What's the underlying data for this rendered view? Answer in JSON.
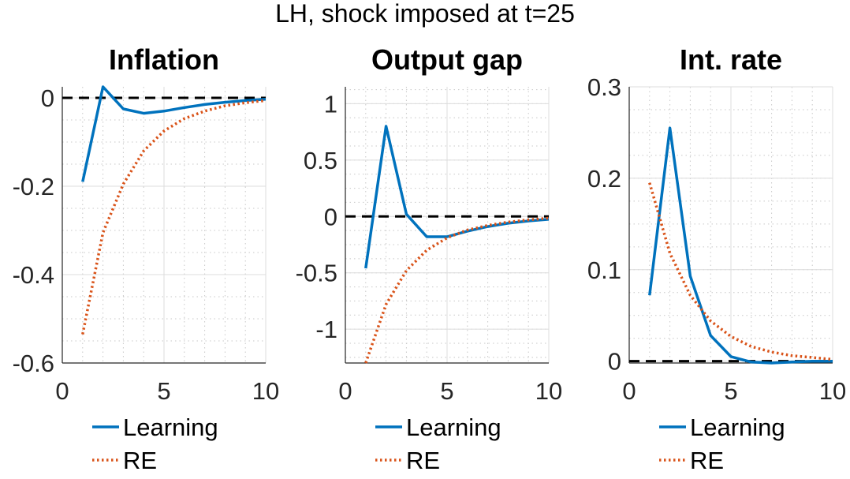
{
  "figure": {
    "suptitle": "LH, shock imposed at t=25"
  },
  "chart_data": [
    {
      "type": "line",
      "title": "Inflation",
      "xlabel": "",
      "ylabel": "",
      "xlim": [
        0,
        10
      ],
      "ylim": [
        -0.6,
        0.025
      ],
      "xticks": [
        0,
        5,
        10
      ],
      "xtick_labels": [
        "0",
        "5",
        "10"
      ],
      "yticks": [
        0,
        -0.2,
        -0.4,
        -0.6
      ],
      "ytick_labels": [
        "0",
        "-0.2",
        "-0.4",
        "-0.6"
      ],
      "grid": true,
      "minor_grid": true,
      "legend_position": "below",
      "x": [
        1,
        2,
        3,
        4,
        5,
        6,
        7,
        8,
        9,
        10
      ],
      "series": [
        {
          "name": "Learning",
          "style": "solid",
          "color": "#0072BD",
          "values": [
            -0.19,
            0.025,
            -0.025,
            -0.035,
            -0.03,
            -0.022,
            -0.015,
            -0.01,
            -0.006,
            -0.003
          ]
        },
        {
          "name": "RE",
          "style": "dotted",
          "color": "#D95319",
          "values": [
            -0.535,
            -0.305,
            -0.195,
            -0.12,
            -0.075,
            -0.047,
            -0.03,
            -0.018,
            -0.011,
            -0.006
          ]
        }
      ],
      "reference_line": {
        "y": 0,
        "style": "dashed",
        "color": "#000000"
      }
    },
    {
      "type": "line",
      "title": "Output gap",
      "xlabel": "",
      "ylabel": "",
      "xlim": [
        0,
        10
      ],
      "ylim": [
        -1.3,
        1.15
      ],
      "xticks": [
        0,
        5,
        10
      ],
      "xtick_labels": [
        "0",
        "5",
        "10"
      ],
      "yticks": [
        1,
        0.5,
        0,
        -0.5,
        -1
      ],
      "ytick_labels": [
        "1",
        "0.5",
        "0",
        "-0.5",
        "-1"
      ],
      "grid": true,
      "minor_grid": true,
      "legend_position": "below",
      "x": [
        1,
        2,
        3,
        4,
        5,
        6,
        7,
        8,
        9,
        10
      ],
      "series": [
        {
          "name": "Learning",
          "style": "solid",
          "color": "#0072BD",
          "values": [
            -0.46,
            0.8,
            0.02,
            -0.18,
            -0.18,
            -0.13,
            -0.09,
            -0.06,
            -0.04,
            -0.025
          ]
        },
        {
          "name": "RE",
          "style": "dotted",
          "color": "#D95319",
          "values": [
            -1.3,
            -0.78,
            -0.48,
            -0.3,
            -0.19,
            -0.12,
            -0.08,
            -0.05,
            -0.03,
            -0.015
          ]
        }
      ],
      "reference_line": {
        "y": 0,
        "style": "dashed",
        "color": "#000000"
      }
    },
    {
      "type": "line",
      "title": "Int. rate",
      "xlabel": "",
      "ylabel": "",
      "xlim": [
        0,
        10
      ],
      "ylim": [
        -0.002,
        0.3
      ],
      "xticks": [
        0,
        5,
        10
      ],
      "xtick_labels": [
        "0",
        "5",
        "10"
      ],
      "yticks": [
        0.3,
        0.2,
        0.1,
        0
      ],
      "ytick_labels": [
        "0.3",
        "0.2",
        "0.1",
        "0"
      ],
      "grid": true,
      "minor_grid": true,
      "legend_position": "below",
      "x": [
        1,
        2,
        3,
        4,
        5,
        6,
        7,
        8,
        9,
        10
      ],
      "series": [
        {
          "name": "Learning",
          "style": "solid",
          "color": "#0072BD",
          "values": [
            0.072,
            0.255,
            0.093,
            0.028,
            0.005,
            -0.001,
            -0.002,
            -0.001,
            0,
            0
          ]
        },
        {
          "name": "RE",
          "style": "dotted",
          "color": "#D95319",
          "values": [
            0.195,
            0.118,
            0.072,
            0.044,
            0.027,
            0.016,
            0.01,
            0.006,
            0.004,
            0.002
          ]
        }
      ],
      "reference_line": {
        "y": 0,
        "style": "dashed",
        "color": "#000000"
      }
    }
  ]
}
